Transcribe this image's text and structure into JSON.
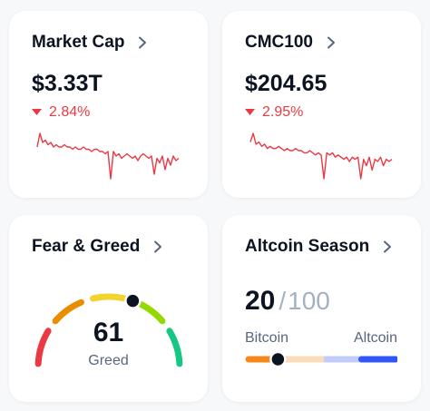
{
  "cards": {
    "market_cap": {
      "title": "Market Cap",
      "value": "$3.33T",
      "change": "2.84%",
      "direction": "down",
      "sparkline_color": "#ea3943",
      "sparkline": [
        58,
        52,
        56,
        55,
        57,
        56,
        58,
        57,
        58,
        58,
        57,
        58,
        58,
        59,
        58,
        59,
        59,
        58,
        59,
        59,
        60,
        59,
        59,
        60,
        60,
        61,
        60,
        72,
        60,
        62,
        61,
        63,
        62,
        61,
        62,
        63,
        62,
        64,
        62,
        61,
        62,
        63,
        62,
        70,
        63,
        65,
        62,
        68,
        63,
        66,
        62,
        64,
        63
      ]
    },
    "cmc100": {
      "title": "CMC100",
      "value": "$204.65",
      "change": "2.95%",
      "direction": "down",
      "sparkline_color": "#ea3943",
      "sparkline": [
        55,
        51,
        56,
        55,
        57,
        56,
        58,
        57,
        58,
        58,
        57,
        58,
        59,
        58,
        59,
        59,
        58,
        59,
        59,
        60,
        60,
        59,
        60,
        61,
        60,
        61,
        72,
        60,
        61,
        60,
        62,
        61,
        62,
        63,
        62,
        64,
        62,
        63,
        62,
        72,
        63,
        66,
        62,
        68,
        63,
        64,
        62,
        66,
        63,
        64,
        63
      ]
    },
    "fear_greed": {
      "title": "Fear & Greed",
      "value": "61",
      "label": "Greed",
      "score": 61,
      "segment_colors": [
        "#ea3943",
        "#ea8c00",
        "#f3d42f",
        "#93d900",
        "#16c784"
      ]
    },
    "altcoin_season": {
      "title": "Altcoin Season",
      "value": "20",
      "separator": "/",
      "max": "100",
      "left_label": "Bitcoin",
      "right_label": "Altcoin",
      "score": 20,
      "bar_colors": [
        "#f68819",
        "#fcdbb9",
        "#c1ccfd",
        "#3156fa"
      ]
    }
  },
  "icons": {
    "chevron": "chevron-right-icon",
    "down": "caret-down-icon"
  }
}
